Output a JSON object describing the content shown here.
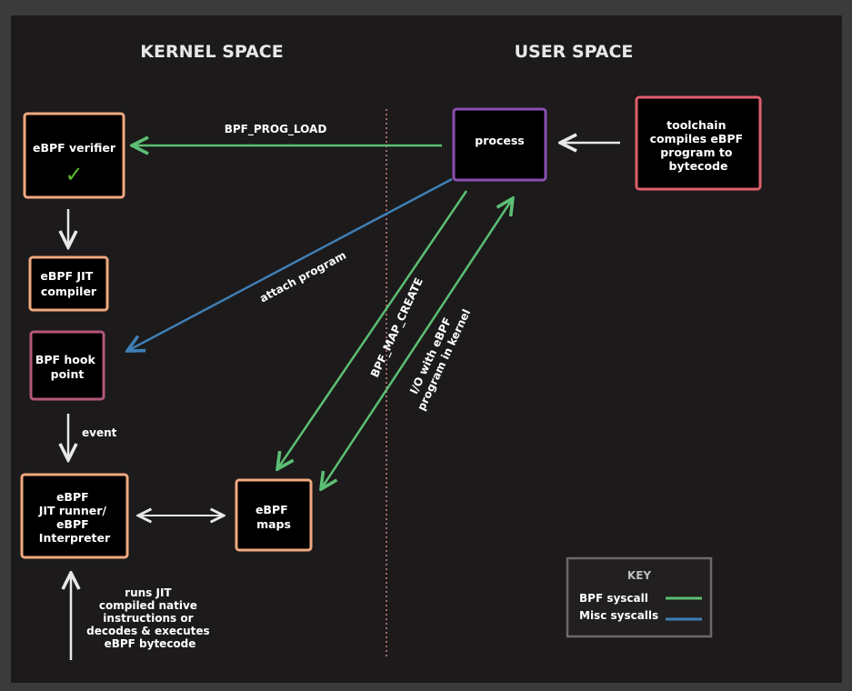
{
  "headings": {
    "kernel": "KERNEL SPACE",
    "user": "USER SPACE"
  },
  "boxes": {
    "verifier": [
      "eBPF verifier"
    ],
    "verifier_check": "✓",
    "jit_compiler": [
      "eBPF JIT",
      "compiler"
    ],
    "hook": [
      "BPF hook",
      "point"
    ],
    "runner": [
      "eBPF",
      "JIT runner/",
      "eBPF",
      "Interpreter"
    ],
    "maps": [
      "eBPF",
      "maps"
    ],
    "process": [
      "process"
    ],
    "toolchain": [
      "toolchain",
      "compiles eBPF",
      "program to",
      "bytecode"
    ]
  },
  "edges": {
    "prog_load": "BPF_PROG_LOAD",
    "attach": "attach program",
    "map_create": "BPF_MAP_CREATE",
    "io": [
      "I/O with eBPF",
      "program in kernel"
    ],
    "event": "event",
    "runs": [
      "runs JIT",
      "compiled native",
      "instructions or",
      "decodes & executes",
      "eBPF bytecode"
    ]
  },
  "key": {
    "title": "KEY",
    "items": [
      {
        "label": "BPF syscall",
        "color": "#5cbf74"
      },
      {
        "label": "Misc syscalls",
        "color": "#3f7fb6"
      }
    ]
  },
  "colors": {
    "background": "#1c1a1a",
    "kernel_box_border": "#f0a97f",
    "hook_box_border": "#b4587c",
    "process_box_border": "#8a4fb0",
    "toolchain_box_border": "#e0606e",
    "key_box_border": "#6e6868",
    "bpf_syscall": "#5cbf74",
    "misc_syscall": "#3f7fb6",
    "neutral_arrow": "#e8e8e8",
    "divider": "#a06a6a",
    "check": "#5cbf2e"
  }
}
